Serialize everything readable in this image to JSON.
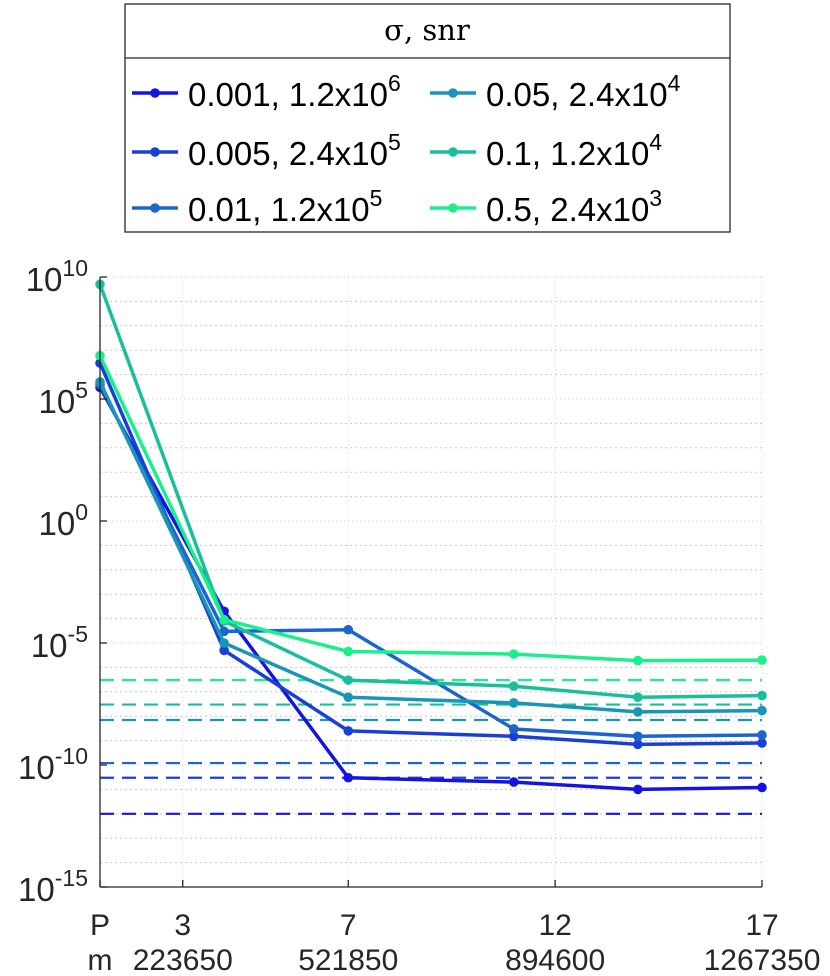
{
  "chart_data": {
    "type": "line",
    "yscale": "log",
    "ylim": [
      1e-15,
      10000000000.0
    ],
    "xlim": [
      1,
      17
    ],
    "grid": true,
    "legend": {
      "title": "σ, snr",
      "placement": "top",
      "columns": 2
    },
    "x_ticks": [
      {
        "value": 1,
        "row1": "P",
        "row2": "m"
      },
      {
        "value": 3,
        "row1": "3",
        "row2": "223650"
      },
      {
        "value": 7,
        "row1": "7",
        "row2": "521850"
      },
      {
        "value": 12,
        "row1": "12",
        "row2": "894600"
      },
      {
        "value": 17,
        "row1": "17",
        "row2": "1267350"
      }
    ],
    "y_ticks": [
      {
        "value": 10000000000.0,
        "base": "10",
        "exp": "10"
      },
      {
        "value": 100000.0,
        "base": "10",
        "exp": "5"
      },
      {
        "value": 1,
        "base": "10",
        "exp": "0"
      },
      {
        "value": 1e-05,
        "base": "10",
        "exp": "-5"
      },
      {
        "value": 1e-10,
        "base": "10",
        "exp": "-10"
      },
      {
        "value": 1e-15,
        "base": "10",
        "exp": "-15"
      }
    ],
    "x": [
      1,
      4,
      7,
      11,
      14,
      17
    ],
    "series": [
      {
        "name": "0.001, 1.2x10",
        "name_exp": "6",
        "color": "#1414e0",
        "values": [
          300000.0,
          0.0002,
          3e-11,
          2e-11,
          1e-11,
          1.2e-11
        ],
        "reference": 1e-12
      },
      {
        "name": "0.005, 2.4x10",
        "name_exp": "5",
        "color": "#1840d8",
        "values": [
          3000000.0,
          5e-06,
          2.5e-09,
          1.5e-09,
          7e-10,
          8e-10
        ],
        "reference": 3e-11
      },
      {
        "name": "0.01, 1.2x10",
        "name_exp": "5",
        "color": "#1a66cc",
        "values": [
          400000.0,
          3e-05,
          3.5e-05,
          3e-09,
          1.5e-09,
          1.7e-09
        ],
        "reference": 1.2e-10
      },
      {
        "name": "0.05, 2.4x10",
        "name_exp": "4",
        "color": "#1a94b8",
        "values": [
          500000.0,
          1e-05,
          6e-08,
          3.5e-08,
          1.5e-08,
          1.7e-08
        ],
        "reference": 7e-09
      },
      {
        "name": "0.1, 1.2x10",
        "name_exp": "4",
        "color": "#19bf9a",
        "values": [
          5000000000.0,
          8e-05,
          3e-07,
          1.7e-07,
          6e-08,
          7e-08
        ],
        "reference": 3e-08
      },
      {
        "name": "0.5, 2.4x10",
        "name_exp": "3",
        "color": "#19f08a",
        "values": [
          6000000.0,
          9e-05,
          4.5e-06,
          3.5e-06,
          1.9e-06,
          2e-06
        ],
        "reference": 3e-07
      }
    ]
  }
}
